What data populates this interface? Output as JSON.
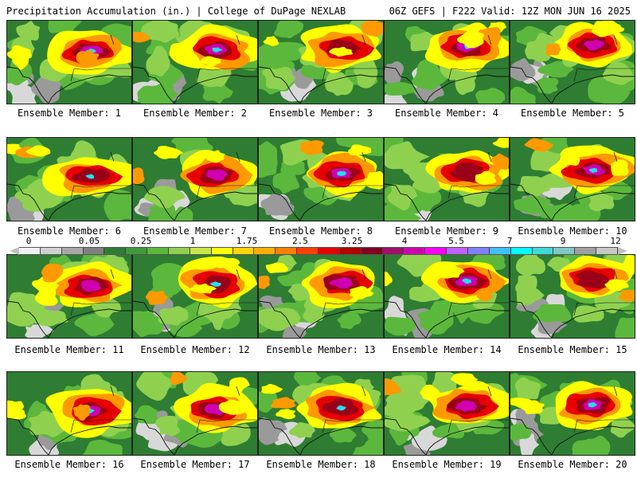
{
  "header": {
    "title_left": "Precipitation Accumulation (in.) | College of DuPage NEXLAB",
    "title_right": "06Z GEFS | F222 Valid: 12Z MON JUN 16 2025"
  },
  "colorbar": {
    "labels": [
      "0",
      "0.05",
      "0.25",
      "1",
      "1.75",
      "2.5",
      "3.25",
      "4",
      "5.5",
      "7",
      "9",
      "12"
    ],
    "colors": [
      "#f0f0f0",
      "#d0d0d0",
      "#a8a8a8",
      "#808080",
      "#2e7d32",
      "#3f9a3a",
      "#5cb83c",
      "#8fd14f",
      "#c8e64a",
      "#ffff00",
      "#ffd500",
      "#ffae00",
      "#ff8000",
      "#ff4000",
      "#e60000",
      "#b00000",
      "#800020",
      "#a0106a",
      "#d000b0",
      "#ff00ff",
      "#c060ff",
      "#8080ff",
      "#40c0ff",
      "#00ffff",
      "#40d8d8",
      "#80c8c8",
      "#a0a0a0",
      "#c8c8c8"
    ]
  },
  "palette": {
    "background_green": "#2e7d32",
    "green_mid": "#5cb83c",
    "green_light": "#8fd14f",
    "yellow": "#ffff00",
    "orange": "#ff9900",
    "red": "#e60000",
    "darkred": "#9a0018",
    "magenta": "#d000b0",
    "cyan": "#20e0f0",
    "gray": "#9a9a9a",
    "lightgray": "#d8d8d8"
  },
  "panels": [
    {
      "label": "Ensemble Member: 1"
    },
    {
      "label": "Ensemble Member: 2"
    },
    {
      "label": "Ensemble Member: 3"
    },
    {
      "label": "Ensemble Member: 4"
    },
    {
      "label": "Ensemble Member: 5"
    },
    {
      "label": "Ensemble Member: 6"
    },
    {
      "label": "Ensemble Member: 7"
    },
    {
      "label": "Ensemble Member: 8"
    },
    {
      "label": "Ensemble Member: 9"
    },
    {
      "label": "Ensemble Member: 10"
    },
    {
      "label": "Ensemble Member: 11"
    },
    {
      "label": "Ensemble Member: 12"
    },
    {
      "label": "Ensemble Member: 13"
    },
    {
      "label": "Ensemble Member: 14"
    },
    {
      "label": "Ensemble Member: 15"
    },
    {
      "label": "Ensemble Member: 16"
    },
    {
      "label": "Ensemble Member: 17"
    },
    {
      "label": "Ensemble Member: 18"
    },
    {
      "label": "Ensemble Member: 19"
    },
    {
      "label": "Ensemble Member: 20"
    }
  ]
}
